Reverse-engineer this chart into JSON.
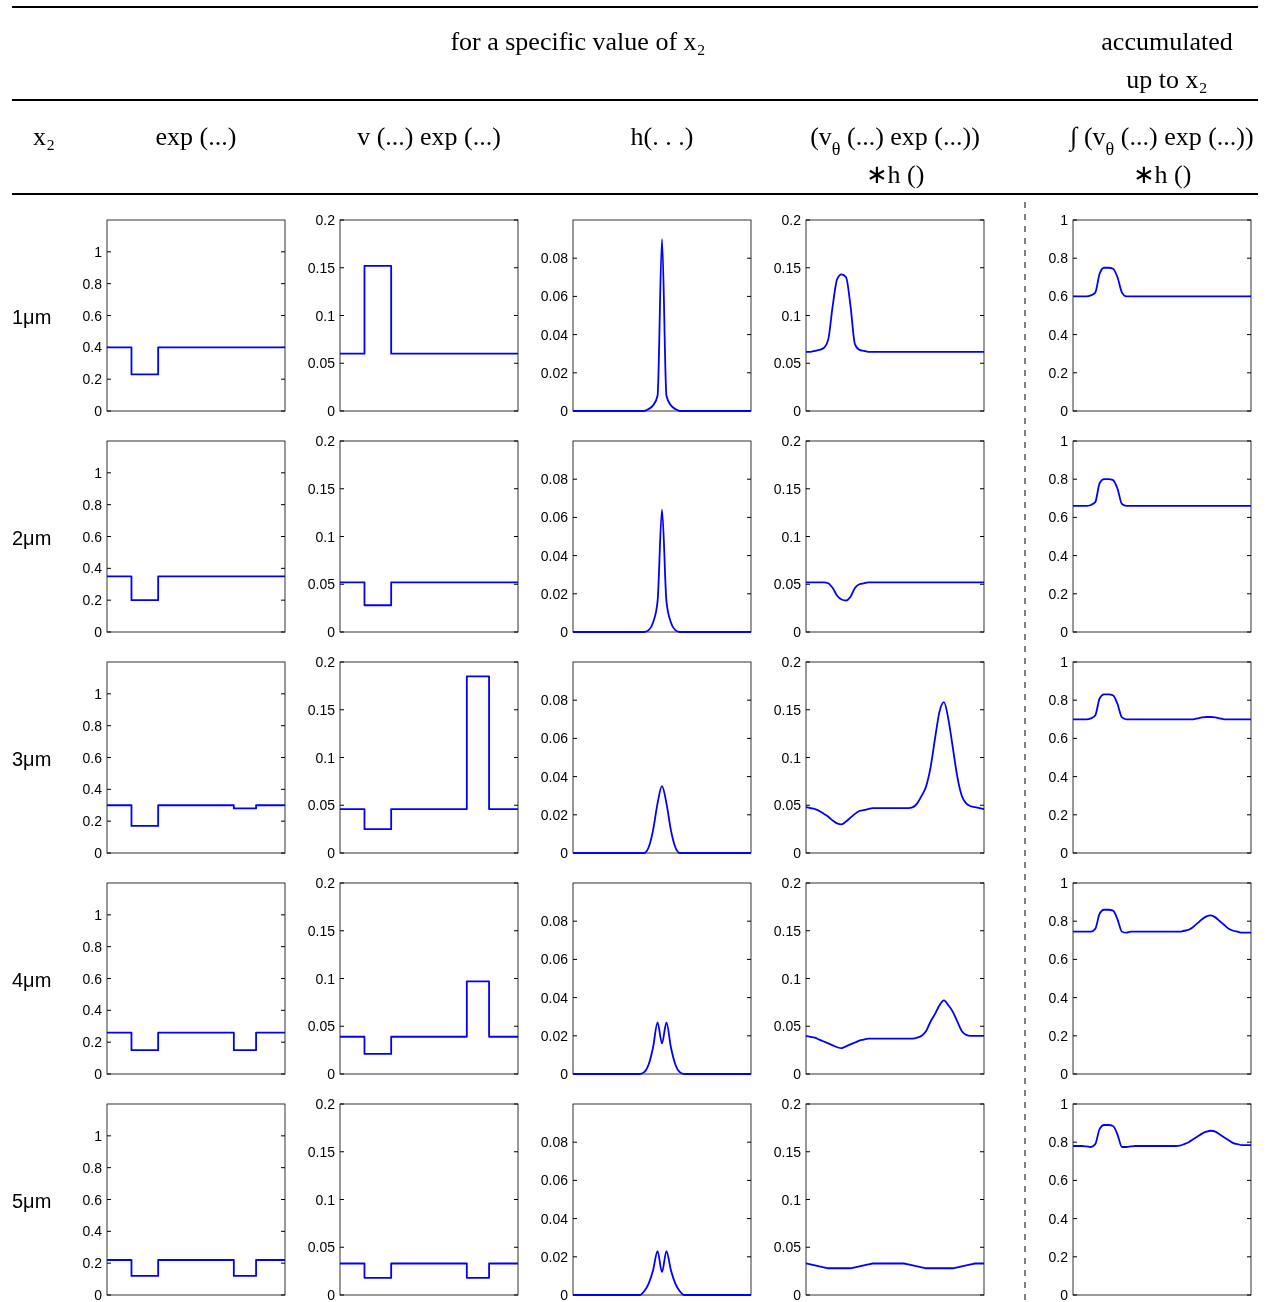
{
  "chart_data": [
    {
      "type": "step",
      "title": "exp (...)",
      "ylabel": "1μm",
      "annotations": [
        "for a specific value of x₂",
        "x₂"
      ],
      "categories": [
        null,
        null,
        null,
        null,
        null,
        null,
        null,
        null,
        null,
        null,
        null,
        null,
        null,
        null,
        null,
        null,
        null,
        null,
        null,
        null,
        null,
        null,
        null,
        null,
        null,
        null,
        null,
        null,
        null,
        null,
        null,
        null,
        null,
        null,
        null,
        null,
        null,
        null,
        null,
        null,
        null
      ],
      "values": [
        0.4,
        0.4,
        0.4,
        0.4,
        0.4,
        0.4,
        0.23,
        0.23,
        0.23,
        0.23,
        0.23,
        0.23,
        0.4,
        0.4,
        0.4,
        0.4,
        0.4,
        0.4,
        0.4,
        0.4,
        0.4,
        0.4,
        0.4,
        0.4,
        0.4,
        0.4,
        0.4,
        0.4,
        0.4,
        0.4,
        0.4,
        0.4,
        0.4,
        0.4,
        0.4,
        0.4,
        0.4,
        0.4,
        0.4,
        0.4,
        0.4
      ],
      "color": "#0000ff",
      "ylim": [
        0,
        1.2
      ],
      "yticks": [
        0,
        0.2,
        0.4,
        0.6,
        0.8,
        1
      ],
      "tick_labels": "y"
    },
    {
      "type": "step",
      "title": "v (...) exp (...)",
      "categories": [
        null,
        null,
        null,
        null,
        null,
        null,
        null,
        null,
        null,
        null,
        null,
        null,
        null,
        null,
        null,
        null,
        null,
        null,
        null,
        null,
        null,
        null,
        null,
        null,
        null,
        null,
        null,
        null,
        null,
        null,
        null,
        null,
        null,
        null,
        null,
        null,
        null,
        null,
        null,
        null,
        null
      ],
      "values": [
        0.06,
        0.06,
        0.06,
        0.06,
        0.06,
        0.06,
        0.152,
        0.152,
        0.152,
        0.152,
        0.152,
        0.152,
        0.06,
        0.06,
        0.06,
        0.06,
        0.06,
        0.06,
        0.06,
        0.06,
        0.06,
        0.06,
        0.06,
        0.06,
        0.06,
        0.06,
        0.06,
        0.06,
        0.06,
        0.06,
        0.06,
        0.06,
        0.06,
        0.06,
        0.06,
        0.06,
        0.06,
        0.06,
        0.06,
        0.06,
        0.06
      ],
      "color": "#0000ff",
      "ylim": [
        0,
        0.2
      ],
      "yticks": [
        0,
        0.05,
        0.1,
        0.15,
        0.2
      ],
      "tick_labels": "y"
    },
    {
      "type": "line",
      "title": "h(. . .)",
      "categories": [
        null,
        null,
        null,
        null,
        null,
        null,
        null,
        null,
        null,
        null,
        null,
        null,
        null,
        null,
        null,
        null,
        null,
        null,
        null,
        null,
        null,
        null,
        null,
        null,
        null,
        null,
        null,
        null,
        null,
        null,
        null,
        null,
        null,
        null,
        null,
        null,
        null,
        null,
        null,
        null,
        null
      ],
      "values": [
        0,
        0,
        0,
        0,
        0,
        0,
        0,
        0,
        0,
        0,
        0,
        0,
        0,
        0,
        0,
        0,
        0,
        0.001,
        0.003,
        0.008,
        0.09,
        0.008,
        0.003,
        0.001,
        0,
        0,
        0,
        0,
        0,
        0,
        0,
        0,
        0,
        0,
        0,
        0,
        0,
        0,
        0,
        0,
        0
      ],
      "color": "#0000ff",
      "ylim": [
        0,
        0.1
      ],
      "yticks": [
        0,
        0.02,
        0.04,
        0.06,
        0.08
      ],
      "tick_labels": "y"
    },
    {
      "type": "line",
      "title": "(v$_{θ}$ (...) exp (...))\n∗h ()",
      "categories": [
        null,
        null,
        null,
        null,
        null,
        null,
        null,
        null,
        null,
        null,
        null,
        null,
        null,
        null,
        null,
        null,
        null,
        null,
        null,
        null,
        null,
        null,
        null,
        null,
        null,
        null,
        null,
        null,
        null,
        null,
        null,
        null,
        null,
        null,
        null,
        null,
        null,
        null,
        null,
        null,
        null
      ],
      "values": [
        0.062,
        0.062,
        0.063,
        0.064,
        0.066,
        0.075,
        0.11,
        0.138,
        0.143,
        0.14,
        0.11,
        0.07,
        0.064,
        0.063,
        0.062,
        0.062,
        0.062,
        0.062,
        0.062,
        0.062,
        0.062,
        0.062,
        0.062,
        0.062,
        0.062,
        0.062,
        0.062,
        0.062,
        0.062,
        0.062,
        0.062,
        0.062,
        0.062,
        0.062,
        0.062,
        0.062,
        0.062,
        0.062,
        0.062,
        0.062,
        0.062
      ],
      "color": "#0000ff",
      "ylim": [
        0,
        0.2
      ],
      "yticks": [
        0,
        0.05,
        0.1,
        0.15,
        0.2
      ],
      "tick_labels": "y"
    },
    {
      "type": "line",
      "title": "∫ (v$_{θ}$ (...) exp (...))\n∗h ()",
      "annotations": [
        "accumulated\nup to x₂"
      ],
      "categories": [
        null,
        null,
        null,
        null,
        null,
        null,
        null,
        null,
        null,
        null,
        null,
        null,
        null,
        null,
        null,
        null,
        null,
        null,
        null,
        null,
        null,
        null,
        null,
        null,
        null,
        null,
        null,
        null,
        null,
        null,
        null,
        null,
        null,
        null,
        null,
        null,
        null,
        null,
        null,
        null,
        null
      ],
      "values": [
        0.6,
        0.6,
        0.6,
        0.6,
        0.605,
        0.62,
        0.72,
        0.75,
        0.75,
        0.745,
        0.7,
        0.62,
        0.6,
        0.6,
        0.6,
        0.6,
        0.6,
        0.6,
        0.6,
        0.6,
        0.6,
        0.6,
        0.6,
        0.6,
        0.6,
        0.6,
        0.6,
        0.6,
        0.6,
        0.6,
        0.6,
        0.6,
        0.6,
        0.6,
        0.6,
        0.6,
        0.6,
        0.6,
        0.6,
        0.6,
        0.6
      ],
      "color": "#0000ff",
      "ylim": [
        0,
        1
      ],
      "yticks": [
        0,
        0.2,
        0.4,
        0.6,
        0.8,
        1
      ],
      "tick_labels": "y"
    },
    {
      "type": "step",
      "ylabel": "2μm",
      "categories": [
        null,
        null,
        null,
        null,
        null,
        null,
        null,
        null,
        null,
        null,
        null,
        null,
        null,
        null,
        null,
        null,
        null,
        null,
        null,
        null,
        null,
        null,
        null,
        null,
        null,
        null,
        null,
        null,
        null,
        null,
        null,
        null,
        null,
        null,
        null,
        null,
        null,
        null,
        null,
        null,
        null
      ],
      "values": [
        0.35,
        0.35,
        0.35,
        0.35,
        0.35,
        0.35,
        0.2,
        0.2,
        0.2,
        0.2,
        0.2,
        0.2,
        0.35,
        0.35,
        0.35,
        0.35,
        0.35,
        0.35,
        0.35,
        0.35,
        0.35,
        0.35,
        0.35,
        0.35,
        0.35,
        0.35,
        0.35,
        0.35,
        0.35,
        0.35,
        0.35,
        0.35,
        0.35,
        0.35,
        0.35,
        0.35,
        0.35,
        0.35,
        0.35,
        0.35,
        0.35
      ],
      "color": "#0000ff",
      "ylim": [
        0,
        1.2
      ],
      "yticks": [
        0,
        0.2,
        0.4,
        0.6,
        0.8,
        1
      ],
      "tick_labels": "y"
    },
    {
      "type": "step",
      "categories": [
        null,
        null,
        null,
        null,
        null,
        null,
        null,
        null,
        null,
        null,
        null,
        null,
        null,
        null,
        null,
        null,
        null,
        null,
        null,
        null,
        null,
        null,
        null,
        null,
        null,
        null,
        null,
        null,
        null,
        null,
        null,
        null,
        null,
        null,
        null,
        null,
        null,
        null,
        null,
        null,
        null
      ],
      "values": [
        0.052,
        0.052,
        0.052,
        0.052,
        0.052,
        0.052,
        0.028,
        0.028,
        0.028,
        0.028,
        0.028,
        0.028,
        0.052,
        0.052,
        0.052,
        0.052,
        0.052,
        0.052,
        0.052,
        0.052,
        0.052,
        0.052,
        0.052,
        0.052,
        0.052,
        0.052,
        0.052,
        0.052,
        0.052,
        0.052,
        0.052,
        0.052,
        0.052,
        0.052,
        0.052,
        0.052,
        0.052,
        0.052,
        0.052,
        0.052,
        0.052
      ],
      "color": "#0000ff",
      "ylim": [
        0,
        0.2
      ],
      "yticks": [
        0,
        0.05,
        0.1,
        0.15,
        0.2
      ],
      "tick_labels": "y"
    },
    {
      "type": "line",
      "categories": [
        null,
        null,
        null,
        null,
        null,
        null,
        null,
        null,
        null,
        null,
        null,
        null,
        null,
        null,
        null,
        null,
        null,
        null,
        null,
        null,
        null,
        null,
        null,
        null,
        null,
        null,
        null,
        null,
        null,
        null,
        null,
        null,
        null,
        null,
        null,
        null,
        null,
        null,
        null,
        null,
        null
      ],
      "values": [
        0,
        0,
        0,
        0,
        0,
        0,
        0,
        0,
        0,
        0,
        0,
        0,
        0,
        0,
        0,
        0,
        0,
        0.001,
        0.005,
        0.016,
        0.064,
        0.016,
        0.005,
        0.001,
        0,
        0,
        0,
        0,
        0,
        0,
        0,
        0,
        0,
        0,
        0,
        0,
        0,
        0,
        0,
        0,
        0
      ],
      "color": "#0000ff",
      "ylim": [
        0,
        0.1
      ],
      "yticks": [
        0,
        0.02,
        0.04,
        0.06,
        0.08
      ],
      "tick_labels": "y"
    },
    {
      "type": "line",
      "categories": [
        null,
        null,
        null,
        null,
        null,
        null,
        null,
        null,
        null,
        null,
        null,
        null,
        null,
        null,
        null,
        null,
        null,
        null,
        null,
        null,
        null,
        null,
        null,
        null,
        null,
        null,
        null,
        null,
        null,
        null,
        null,
        null,
        null,
        null,
        null,
        null,
        null,
        null,
        null,
        null,
        null
      ],
      "values": [
        0.052,
        0.052,
        0.052,
        0.052,
        0.052,
        0.051,
        0.046,
        0.038,
        0.034,
        0.033,
        0.037,
        0.046,
        0.05,
        0.051,
        0.052,
        0.052,
        0.052,
        0.052,
        0.052,
        0.052,
        0.052,
        0.052,
        0.052,
        0.052,
        0.052,
        0.052,
        0.052,
        0.052,
        0.052,
        0.052,
        0.052,
        0.052,
        0.052,
        0.052,
        0.052,
        0.052,
        0.052,
        0.052,
        0.052,
        0.052,
        0.052
      ],
      "color": "#0000ff",
      "ylim": [
        0,
        0.2
      ],
      "yticks": [
        0,
        0.05,
        0.1,
        0.15,
        0.2
      ],
      "tick_labels": "y"
    },
    {
      "type": "line",
      "categories": [
        null,
        null,
        null,
        null,
        null,
        null,
        null,
        null,
        null,
        null,
        null,
        null,
        null,
        null,
        null,
        null,
        null,
        null,
        null,
        null,
        null,
        null,
        null,
        null,
        null,
        null,
        null,
        null,
        null,
        null,
        null,
        null,
        null,
        null,
        null,
        null,
        null,
        null,
        null,
        null,
        null
      ],
      "values": [
        0.66,
        0.66,
        0.66,
        0.66,
        0.665,
        0.68,
        0.78,
        0.8,
        0.8,
        0.795,
        0.75,
        0.67,
        0.66,
        0.66,
        0.66,
        0.66,
        0.66,
        0.66,
        0.66,
        0.66,
        0.66,
        0.66,
        0.66,
        0.66,
        0.66,
        0.66,
        0.66,
        0.66,
        0.66,
        0.66,
        0.66,
        0.66,
        0.66,
        0.66,
        0.66,
        0.66,
        0.66,
        0.66,
        0.66,
        0.66,
        0.66
      ],
      "color": "#0000ff",
      "ylim": [
        0,
        1
      ],
      "yticks": [
        0,
        0.2,
        0.4,
        0.6,
        0.8,
        1
      ],
      "tick_labels": "y"
    },
    {
      "type": "step",
      "ylabel": "3μm",
      "categories": [
        null,
        null,
        null,
        null,
        null,
        null,
        null,
        null,
        null,
        null,
        null,
        null,
        null,
        null,
        null,
        null,
        null,
        null,
        null,
        null,
        null,
        null,
        null,
        null,
        null,
        null,
        null,
        null,
        null,
        null,
        null,
        null,
        null,
        null,
        null,
        null,
        null,
        null,
        null,
        null,
        null
      ],
      "values": [
        0.3,
        0.3,
        0.3,
        0.3,
        0.3,
        0.3,
        0.17,
        0.17,
        0.17,
        0.17,
        0.17,
        0.17,
        0.3,
        0.3,
        0.3,
        0.3,
        0.3,
        0.3,
        0.3,
        0.3,
        0.3,
        0.3,
        0.3,
        0.3,
        0.3,
        0.3,
        0.3,
        0.3,
        0.3,
        0.28,
        0.28,
        0.28,
        0.28,
        0.28,
        0.3,
        0.3,
        0.3,
        0.3,
        0.3,
        0.3,
        0.3
      ],
      "color": "#0000ff",
      "ylim": [
        0,
        1.2
      ],
      "yticks": [
        0,
        0.2,
        0.4,
        0.6,
        0.8,
        1
      ],
      "tick_labels": "y"
    },
    {
      "type": "step",
      "categories": [
        null,
        null,
        null,
        null,
        null,
        null,
        null,
        null,
        null,
        null,
        null,
        null,
        null,
        null,
        null,
        null,
        null,
        null,
        null,
        null,
        null,
        null,
        null,
        null,
        null,
        null,
        null,
        null,
        null,
        null,
        null,
        null,
        null,
        null,
        null,
        null,
        null,
        null,
        null,
        null,
        null
      ],
      "values": [
        0.046,
        0.046,
        0.046,
        0.046,
        0.046,
        0.046,
        0.025,
        0.025,
        0.025,
        0.025,
        0.025,
        0.025,
        0.046,
        0.046,
        0.046,
        0.046,
        0.046,
        0.046,
        0.046,
        0.046,
        0.046,
        0.046,
        0.046,
        0.046,
        0.046,
        0.046,
        0.046,
        0.046,
        0.046,
        0.185,
        0.185,
        0.185,
        0.185,
        0.185,
        0.046,
        0.046,
        0.046,
        0.046,
        0.046,
        0.046,
        0.046
      ],
      "color": "#0000ff",
      "ylim": [
        0,
        0.2
      ],
      "yticks": [
        0,
        0.05,
        0.1,
        0.15,
        0.2
      ],
      "tick_labels": "y"
    },
    {
      "type": "line",
      "categories": [
        null,
        null,
        null,
        null,
        null,
        null,
        null,
        null,
        null,
        null,
        null,
        null,
        null,
        null,
        null,
        null,
        null,
        null,
        null,
        null,
        null,
        null,
        null,
        null,
        null,
        null,
        null,
        null,
        null,
        null,
        null,
        null,
        null,
        null,
        null,
        null,
        null,
        null,
        null,
        null,
        null
      ],
      "values": [
        0,
        0,
        0,
        0,
        0,
        0,
        0,
        0,
        0,
        0,
        0,
        0,
        0,
        0,
        0,
        0,
        0,
        0.003,
        0.012,
        0.026,
        0.035,
        0.026,
        0.012,
        0.003,
        0,
        0,
        0,
        0,
        0,
        0,
        0,
        0,
        0,
        0,
        0,
        0,
        0,
        0,
        0,
        0,
        0
      ],
      "color": "#0000ff",
      "ylim": [
        0,
        0.1
      ],
      "yticks": [
        0,
        0.02,
        0.04,
        0.06,
        0.08
      ],
      "tick_labels": "y"
    },
    {
      "type": "line",
      "categories": [
        null,
        null,
        null,
        null,
        null,
        null,
        null,
        null,
        null,
        null,
        null,
        null,
        null,
        null,
        null,
        null,
        null,
        null,
        null,
        null,
        null,
        null,
        null,
        null,
        null,
        null,
        null,
        null,
        null,
        null,
        null,
        null,
        null,
        null,
        null,
        null,
        null,
        null,
        null,
        null,
        null
      ],
      "values": [
        0.048,
        0.047,
        0.046,
        0.044,
        0.041,
        0.038,
        0.034,
        0.031,
        0.03,
        0.033,
        0.037,
        0.041,
        0.044,
        0.045,
        0.046,
        0.047,
        0.047,
        0.047,
        0.047,
        0.047,
        0.047,
        0.047,
        0.047,
        0.047,
        0.048,
        0.052,
        0.06,
        0.07,
        0.09,
        0.12,
        0.148,
        0.158,
        0.14,
        0.11,
        0.08,
        0.06,
        0.052,
        0.049,
        0.048,
        0.047,
        0.046
      ],
      "color": "#0000ff",
      "ylim": [
        0,
        0.2
      ],
      "yticks": [
        0,
        0.05,
        0.1,
        0.15,
        0.2
      ],
      "tick_labels": "y"
    },
    {
      "type": "line",
      "categories": [
        null,
        null,
        null,
        null,
        null,
        null,
        null,
        null,
        null,
        null,
        null,
        null,
        null,
        null,
        null,
        null,
        null,
        null,
        null,
        null,
        null,
        null,
        null,
        null,
        null,
        null,
        null,
        null,
        null,
        null,
        null,
        null,
        null,
        null,
        null,
        null,
        null,
        null,
        null,
        null,
        null
      ],
      "values": [
        0.7,
        0.7,
        0.7,
        0.7,
        0.705,
        0.72,
        0.81,
        0.83,
        0.83,
        0.825,
        0.78,
        0.71,
        0.7,
        0.7,
        0.7,
        0.7,
        0.7,
        0.7,
        0.7,
        0.7,
        0.7,
        0.7,
        0.7,
        0.7,
        0.7,
        0.7,
        0.7,
        0.7,
        0.705,
        0.71,
        0.712,
        0.712,
        0.71,
        0.705,
        0.7,
        0.7,
        0.7,
        0.7,
        0.7,
        0.7,
        0.7
      ],
      "color": "#0000ff",
      "ylim": [
        0,
        1
      ],
      "yticks": [
        0,
        0.2,
        0.4,
        0.6,
        0.8,
        1
      ],
      "tick_labels": "y"
    },
    {
      "type": "step",
      "ylabel": "4μm",
      "categories": [
        null,
        null,
        null,
        null,
        null,
        null,
        null,
        null,
        null,
        null,
        null,
        null,
        null,
        null,
        null,
        null,
        null,
        null,
        null,
        null,
        null,
        null,
        null,
        null,
        null,
        null,
        null,
        null,
        null,
        null,
        null,
        null,
        null,
        null,
        null,
        null,
        null,
        null,
        null,
        null,
        null
      ],
      "values": [
        0.26,
        0.26,
        0.26,
        0.26,
        0.26,
        0.26,
        0.15,
        0.15,
        0.15,
        0.15,
        0.15,
        0.15,
        0.26,
        0.26,
        0.26,
        0.26,
        0.26,
        0.26,
        0.26,
        0.26,
        0.26,
        0.26,
        0.26,
        0.26,
        0.26,
        0.26,
        0.26,
        0.26,
        0.26,
        0.15,
        0.15,
        0.15,
        0.15,
        0.15,
        0.26,
        0.26,
        0.26,
        0.26,
        0.26,
        0.26,
        0.26
      ],
      "color": "#0000ff",
      "ylim": [
        0,
        1.2
      ],
      "yticks": [
        0,
        0.2,
        0.4,
        0.6,
        0.8,
        1
      ],
      "tick_labels": "y"
    },
    {
      "type": "step",
      "categories": [
        null,
        null,
        null,
        null,
        null,
        null,
        null,
        null,
        null,
        null,
        null,
        null,
        null,
        null,
        null,
        null,
        null,
        null,
        null,
        null,
        null,
        null,
        null,
        null,
        null,
        null,
        null,
        null,
        null,
        null,
        null,
        null,
        null,
        null,
        null,
        null,
        null,
        null,
        null,
        null,
        null
      ],
      "values": [
        0.039,
        0.039,
        0.039,
        0.039,
        0.039,
        0.039,
        0.021,
        0.021,
        0.021,
        0.021,
        0.021,
        0.021,
        0.039,
        0.039,
        0.039,
        0.039,
        0.039,
        0.039,
        0.039,
        0.039,
        0.039,
        0.039,
        0.039,
        0.039,
        0.039,
        0.039,
        0.039,
        0.039,
        0.039,
        0.097,
        0.097,
        0.097,
        0.097,
        0.097,
        0.039,
        0.039,
        0.039,
        0.039,
        0.039,
        0.039,
        0.039
      ],
      "color": "#0000ff",
      "ylim": [
        0,
        0.2
      ],
      "yticks": [
        0,
        0.05,
        0.1,
        0.15,
        0.2
      ],
      "tick_labels": "y"
    },
    {
      "type": "line",
      "categories": [
        null,
        null,
        null,
        null,
        null,
        null,
        null,
        null,
        null,
        null,
        null,
        null,
        null,
        null,
        null,
        null,
        null,
        null,
        null,
        null,
        null,
        null,
        null,
        null,
        null,
        null,
        null,
        null,
        null,
        null,
        null,
        null,
        null,
        null,
        null,
        null,
        null,
        null,
        null,
        null,
        null
      ],
      "values": [
        0,
        0,
        0,
        0,
        0,
        0,
        0,
        0,
        0,
        0,
        0,
        0,
        0,
        0,
        0,
        0,
        0.001,
        0.005,
        0.014,
        0.027,
        0.016,
        0.027,
        0.014,
        0.005,
        0.001,
        0,
        0,
        0,
        0,
        0,
        0,
        0,
        0,
        0,
        0,
        0,
        0,
        0,
        0,
        0,
        0
      ],
      "color": "#0000ff",
      "ylim": [
        0,
        0.1
      ],
      "yticks": [
        0,
        0.02,
        0.04,
        0.06,
        0.08
      ],
      "tick_labels": "y"
    },
    {
      "type": "line",
      "categories": [
        null,
        null,
        null,
        null,
        null,
        null,
        null,
        null,
        null,
        null,
        null,
        null,
        null,
        null,
        null,
        null,
        null,
        null,
        null,
        null,
        null,
        null,
        null,
        null,
        null,
        null,
        null,
        null,
        null,
        null,
        null,
        null,
        null,
        null,
        null,
        null,
        null,
        null,
        null,
        null,
        null
      ],
      "values": [
        0.04,
        0.039,
        0.038,
        0.036,
        0.034,
        0.032,
        0.03,
        0.028,
        0.027,
        0.029,
        0.031,
        0.033,
        0.035,
        0.036,
        0.037,
        0.037,
        0.037,
        0.037,
        0.037,
        0.037,
        0.037,
        0.037,
        0.037,
        0.037,
        0.037,
        0.038,
        0.04,
        0.045,
        0.055,
        0.063,
        0.072,
        0.077,
        0.072,
        0.065,
        0.055,
        0.045,
        0.041,
        0.04,
        0.04,
        0.04,
        0.04
      ],
      "color": "#0000ff",
      "ylim": [
        0,
        0.2
      ],
      "yticks": [
        0,
        0.05,
        0.1,
        0.15,
        0.2
      ],
      "tick_labels": "y"
    },
    {
      "type": "line",
      "categories": [
        null,
        null,
        null,
        null,
        null,
        null,
        null,
        null,
        null,
        null,
        null,
        null,
        null,
        null,
        null,
        null,
        null,
        null,
        null,
        null,
        null,
        null,
        null,
        null,
        null,
        null,
        null,
        null,
        null,
        null,
        null,
        null,
        null,
        null,
        null,
        null,
        null,
        null,
        null,
        null,
        null
      ],
      "values": [
        0.745,
        0.745,
        0.745,
        0.745,
        0.745,
        0.76,
        0.84,
        0.86,
        0.86,
        0.855,
        0.81,
        0.745,
        0.74,
        0.745,
        0.745,
        0.745,
        0.745,
        0.745,
        0.745,
        0.745,
        0.745,
        0.745,
        0.745,
        0.745,
        0.745,
        0.75,
        0.755,
        0.77,
        0.79,
        0.81,
        0.825,
        0.83,
        0.82,
        0.8,
        0.78,
        0.76,
        0.75,
        0.745,
        0.74,
        0.74,
        0.74
      ],
      "color": "#0000ff",
      "ylim": [
        0,
        1
      ],
      "yticks": [
        0,
        0.2,
        0.4,
        0.6,
        0.8,
        1
      ],
      "tick_labels": "y"
    },
    {
      "type": "step",
      "ylabel": "5μm",
      "categories": [
        null,
        null,
        null,
        null,
        null,
        null,
        null,
        null,
        null,
        null,
        null,
        null,
        null,
        null,
        null,
        null,
        null,
        null,
        null,
        null,
        null,
        null,
        null,
        null,
        null,
        null,
        null,
        null,
        null,
        null,
        null,
        null,
        null,
        null,
        null,
        null,
        null,
        null,
        null,
        null,
        null
      ],
      "values": [
        0.22,
        0.22,
        0.22,
        0.22,
        0.22,
        0.22,
        0.12,
        0.12,
        0.12,
        0.12,
        0.12,
        0.12,
        0.22,
        0.22,
        0.22,
        0.22,
        0.22,
        0.22,
        0.22,
        0.22,
        0.22,
        0.22,
        0.22,
        0.22,
        0.22,
        0.22,
        0.22,
        0.22,
        0.22,
        0.12,
        0.12,
        0.12,
        0.12,
        0.12,
        0.22,
        0.22,
        0.22,
        0.22,
        0.22,
        0.22,
        0.22
      ],
      "color": "#0000ff",
      "ylim": [
        0,
        1.2
      ],
      "yticks": [
        0,
        0.2,
        0.4,
        0.6,
        0.8,
        1
      ],
      "tick_labels": "y"
    },
    {
      "type": "step",
      "categories": [
        null,
        null,
        null,
        null,
        null,
        null,
        null,
        null,
        null,
        null,
        null,
        null,
        null,
        null,
        null,
        null,
        null,
        null,
        null,
        null,
        null,
        null,
        null,
        null,
        null,
        null,
        null,
        null,
        null,
        null,
        null,
        null,
        null,
        null,
        null,
        null,
        null,
        null,
        null,
        null,
        null
      ],
      "values": [
        0.033,
        0.033,
        0.033,
        0.033,
        0.033,
        0.033,
        0.018,
        0.018,
        0.018,
        0.018,
        0.018,
        0.018,
        0.033,
        0.033,
        0.033,
        0.033,
        0.033,
        0.033,
        0.033,
        0.033,
        0.033,
        0.033,
        0.033,
        0.033,
        0.033,
        0.033,
        0.033,
        0.033,
        0.033,
        0.018,
        0.018,
        0.018,
        0.018,
        0.018,
        0.033,
        0.033,
        0.033,
        0.033,
        0.033,
        0.033,
        0.033
      ],
      "color": "#0000ff",
      "ylim": [
        0,
        0.2
      ],
      "yticks": [
        0,
        0.05,
        0.1,
        0.15,
        0.2
      ],
      "tick_labels": "y"
    },
    {
      "type": "line",
      "categories": [
        null,
        null,
        null,
        null,
        null,
        null,
        null,
        null,
        null,
        null,
        null,
        null,
        null,
        null,
        null,
        null,
        null,
        null,
        null,
        null,
        null,
        null,
        null,
        null,
        null,
        null,
        null,
        null,
        null,
        null,
        null,
        null,
        null,
        null,
        null,
        null,
        null,
        null,
        null,
        null,
        null
      ],
      "values": [
        0,
        0,
        0,
        0,
        0,
        0,
        0,
        0,
        0,
        0,
        0,
        0,
        0,
        0,
        0,
        0,
        0.002,
        0.006,
        0.013,
        0.023,
        0.012,
        0.023,
        0.013,
        0.006,
        0.002,
        0,
        0,
        0,
        0,
        0,
        0,
        0,
        0,
        0,
        0,
        0,
        0,
        0,
        0,
        0,
        0
      ],
      "color": "#0000ff",
      "ylim": [
        0,
        0.1
      ],
      "yticks": [
        0,
        0.02,
        0.04,
        0.06,
        0.08
      ],
      "tick_labels": "y"
    },
    {
      "type": "line",
      "categories": [
        null,
        null,
        null,
        null,
        null,
        null,
        null,
        null,
        null,
        null,
        null,
        null,
        null,
        null,
        null,
        null,
        null,
        null,
        null,
        null,
        null,
        null,
        null,
        null,
        null,
        null,
        null,
        null,
        null,
        null,
        null,
        null,
        null,
        null,
        null,
        null,
        null,
        null,
        null,
        null,
        null
      ],
      "values": [
        0.033,
        0.032,
        0.031,
        0.03,
        0.029,
        0.028,
        0.028,
        0.028,
        0.028,
        0.028,
        0.028,
        0.029,
        0.03,
        0.031,
        0.032,
        0.033,
        0.033,
        0.033,
        0.033,
        0.033,
        0.033,
        0.033,
        0.033,
        0.032,
        0.031,
        0.03,
        0.029,
        0.028,
        0.028,
        0.028,
        0.028,
        0.028,
        0.028,
        0.028,
        0.029,
        0.03,
        0.031,
        0.032,
        0.033,
        0.033,
        0.033
      ],
      "color": "#0000ff",
      "ylim": [
        0,
        0.2
      ],
      "yticks": [
        0,
        0.05,
        0.1,
        0.15,
        0.2
      ],
      "tick_labels": "y"
    },
    {
      "type": "line",
      "categories": [
        null,
        null,
        null,
        null,
        null,
        null,
        null,
        null,
        null,
        null,
        null,
        null,
        null,
        null,
        null,
        null,
        null,
        null,
        null,
        null,
        null,
        null,
        null,
        null,
        null,
        null,
        null,
        null,
        null,
        null,
        null,
        null,
        null,
        null,
        null,
        null,
        null,
        null,
        null,
        null,
        null
      ],
      "values": [
        0.78,
        0.78,
        0.78,
        0.778,
        0.775,
        0.79,
        0.87,
        0.89,
        0.89,
        0.885,
        0.84,
        0.775,
        0.775,
        0.778,
        0.78,
        0.78,
        0.78,
        0.78,
        0.78,
        0.78,
        0.78,
        0.78,
        0.78,
        0.78,
        0.782,
        0.79,
        0.8,
        0.815,
        0.83,
        0.845,
        0.855,
        0.86,
        0.855,
        0.84,
        0.825,
        0.81,
        0.795,
        0.79,
        0.785,
        0.785,
        0.785
      ],
      "color": "#0000ff",
      "ylim": [
        0,
        1
      ],
      "yticks": [
        0,
        0.2,
        0.4,
        0.6,
        0.8,
        1
      ],
      "tick_labels": "y"
    }
  ]
}
